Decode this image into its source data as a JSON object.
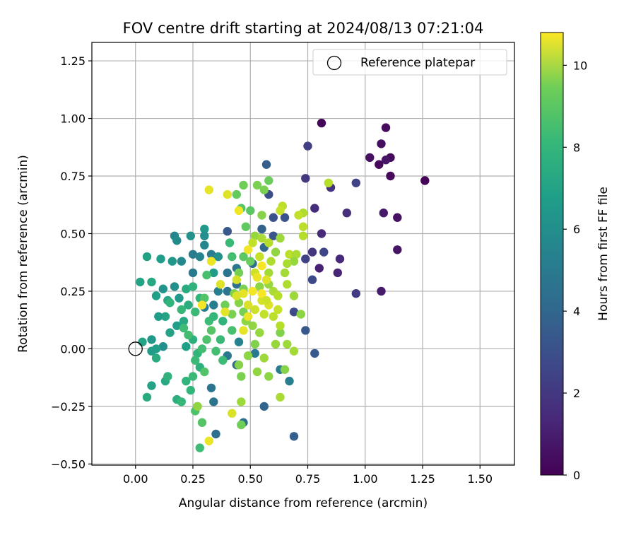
{
  "chart_data": {
    "type": "scatter",
    "title": "FOV centre drift starting at 2024/08/13 07:21:04",
    "xlabel": "Angular distance from reference (arcmin)",
    "ylabel": "Rotation from reference (arcmin)",
    "xlim": [
      -0.19,
      1.65
    ],
    "ylim": [
      -0.505,
      1.33
    ],
    "xticks": [
      0.0,
      0.25,
      0.5,
      0.75,
      1.0,
      1.25,
      1.5
    ],
    "xtick_labels": [
      "0.00",
      "0.25",
      "0.50",
      "0.75",
      "1.00",
      "1.25",
      "1.50"
    ],
    "yticks": [
      -0.5,
      -0.25,
      0.0,
      0.25,
      0.5,
      0.75,
      1.0,
      1.25
    ],
    "ytick_labels": [
      "−0.50",
      "−0.25",
      "0.00",
      "0.25",
      "0.50",
      "0.75",
      "1.00",
      "1.25"
    ],
    "grid": true,
    "legend": {
      "position": "top-right",
      "entries": [
        "Reference platepar"
      ]
    },
    "reference_point": {
      "x": 0.0,
      "y": 0.0,
      "name": "Reference platepar",
      "marker": "open-circle"
    },
    "colorbar": {
      "label": "Hours from first FF file",
      "colormap": "viridis",
      "range": [
        0,
        10.8
      ],
      "ticks": [
        0,
        2,
        4,
        6,
        8,
        10
      ],
      "tick_labels": [
        "0",
        "2",
        "4",
        "6",
        "8",
        "10"
      ]
    },
    "points": [
      [
        0.81,
        0.98,
        0.1
      ],
      [
        1.09,
        0.96,
        0.3
      ],
      [
        1.07,
        0.89,
        0.4
      ],
      [
        1.02,
        0.83,
        0.5
      ],
      [
        1.11,
        0.83,
        0.3
      ],
      [
        1.06,
        0.8,
        0.2
      ],
      [
        1.09,
        0.82,
        0.6
      ],
      [
        1.26,
        0.73,
        0.1
      ],
      [
        1.11,
        0.75,
        0.2
      ],
      [
        1.08,
        0.59,
        0.7
      ],
      [
        1.14,
        0.57,
        0.5
      ],
      [
        1.14,
        0.43,
        0.6
      ],
      [
        1.07,
        0.25,
        0.8
      ],
      [
        0.75,
        0.88,
        2.0
      ],
      [
        0.74,
        0.74,
        1.8
      ],
      [
        0.85,
        0.7,
        1.6
      ],
      [
        0.96,
        0.72,
        2.2
      ],
      [
        0.92,
        0.59,
        1.5
      ],
      [
        0.78,
        0.61,
        1.4
      ],
      [
        0.81,
        0.5,
        1.3
      ],
      [
        0.89,
        0.39,
        1.2
      ],
      [
        0.88,
        0.33,
        1.1
      ],
      [
        0.96,
        0.24,
        1.9
      ],
      [
        0.8,
        0.35,
        1.0
      ],
      [
        0.77,
        0.3,
        2.4
      ],
      [
        0.77,
        0.42,
        1.7
      ],
      [
        0.82,
        0.42,
        2.3
      ],
      [
        0.74,
        0.39,
        2.1
      ],
      [
        0.69,
        0.16,
        2.5
      ],
      [
        0.74,
        0.08,
        3.0
      ],
      [
        0.78,
        -0.02,
        3.1
      ],
      [
        0.69,
        -0.38,
        3.3
      ],
      [
        0.57,
        0.8,
        3.2
      ],
      [
        0.58,
        0.67,
        2.6
      ],
      [
        0.6,
        0.57,
        2.7
      ],
      [
        0.65,
        0.57,
        2.8
      ],
      [
        0.55,
        0.52,
        3.4
      ],
      [
        0.4,
        0.51,
        3.0
      ],
      [
        0.6,
        0.49,
        2.9
      ],
      [
        0.56,
        0.44,
        3.6
      ],
      [
        0.51,
        0.37,
        3.8
      ],
      [
        0.56,
        -0.25,
        3.5
      ],
      [
        0.47,
        -0.32,
        4.0
      ],
      [
        0.35,
        -0.37,
        3.9
      ],
      [
        0.34,
        -0.23,
        4.1
      ],
      [
        0.33,
        -0.17,
        4.2
      ],
      [
        0.44,
        -0.07,
        3.7
      ],
      [
        0.4,
        -0.03,
        4.3
      ],
      [
        0.52,
        -0.02,
        4.4
      ],
      [
        0.63,
        -0.09,
        4.5
      ],
      [
        0.67,
        -0.14,
        4.6
      ],
      [
        0.45,
        0.03,
        4.8
      ],
      [
        0.17,
        0.49,
        5.0
      ],
      [
        0.18,
        0.47,
        5.2
      ],
      [
        0.24,
        0.49,
        5.5
      ],
      [
        0.3,
        0.52,
        5.8
      ],
      [
        0.3,
        0.49,
        5.3
      ],
      [
        0.3,
        0.45,
        5.0
      ],
      [
        0.33,
        0.41,
        4.6
      ],
      [
        0.25,
        0.41,
        4.5
      ],
      [
        0.28,
        0.4,
        4.9
      ],
      [
        0.16,
        0.38,
        5.7
      ],
      [
        0.2,
        0.38,
        5.1
      ],
      [
        0.36,
        0.4,
        5.4
      ],
      [
        0.34,
        0.33,
        5.9
      ],
      [
        0.36,
        0.25,
        4.7
      ],
      [
        0.25,
        0.33,
        4.4
      ],
      [
        0.4,
        0.33,
        4.2
      ],
      [
        0.44,
        0.35,
        4.3
      ],
      [
        0.4,
        0.25,
        4.1
      ],
      [
        0.44,
        0.28,
        4.0
      ],
      [
        0.34,
        0.19,
        4.6
      ],
      [
        0.3,
        0.18,
        4.5
      ],
      [
        0.05,
        0.4,
        6.2
      ],
      [
        0.11,
        0.39,
        6.0
      ],
      [
        0.07,
        0.29,
        6.5
      ],
      [
        0.02,
        0.29,
        6.3
      ],
      [
        0.12,
        0.26,
        5.6
      ],
      [
        0.09,
        0.23,
        6.1
      ],
      [
        0.17,
        0.27,
        5.4
      ],
      [
        0.14,
        0.21,
        6.4
      ],
      [
        0.19,
        0.22,
        5.8
      ],
      [
        0.22,
        0.26,
        6.6
      ],
      [
        0.25,
        0.27,
        6.9
      ],
      [
        0.23,
        0.19,
        6.7
      ],
      [
        0.13,
        0.14,
        6.3
      ],
      [
        0.1,
        0.14,
        5.9
      ],
      [
        0.18,
        0.1,
        6.0
      ],
      [
        0.15,
        0.07,
        6.2
      ],
      [
        0.21,
        0.12,
        6.5
      ],
      [
        0.25,
        0.04,
        6.8
      ],
      [
        0.22,
        0.01,
        6.1
      ],
      [
        0.07,
        0.04,
        5.8
      ],
      [
        0.12,
        0.01,
        5.3
      ],
      [
        0.07,
        -0.01,
        5.9
      ],
      [
        0.09,
        0.0,
        6.0
      ],
      [
        0.09,
        -0.04,
        6.6
      ],
      [
        0.03,
        0.03,
        6.3
      ],
      [
        0.05,
        -0.21,
        6.6
      ],
      [
        0.07,
        -0.16,
        6.2
      ],
      [
        0.13,
        -0.14,
        6.5
      ],
      [
        0.14,
        -0.12,
        6.9
      ],
      [
        0.18,
        -0.22,
        6.7
      ],
      [
        0.2,
        -0.23,
        7.2
      ],
      [
        0.22,
        -0.14,
        7.0
      ],
      [
        0.25,
        -0.12,
        7.3
      ],
      [
        0.24,
        -0.18,
        7.1
      ],
      [
        0.28,
        -0.08,
        6.8
      ],
      [
        0.27,
        -0.02,
        7.0
      ],
      [
        0.28,
        -0.43,
        7.4
      ],
      [
        0.29,
        -0.32,
        7.9
      ],
      [
        0.26,
        -0.27,
        7.7
      ],
      [
        0.27,
        -0.25,
        7.6
      ],
      [
        0.15,
        0.2,
        7.0
      ],
      [
        0.2,
        0.17,
        7.2
      ],
      [
        0.21,
        0.09,
        7.4
      ],
      [
        0.23,
        0.06,
        7.5
      ],
      [
        0.26,
        0.16,
        7.3
      ],
      [
        0.28,
        0.22,
        7.1
      ],
      [
        0.31,
        0.32,
        7.6
      ],
      [
        0.3,
        0.22,
        7.8
      ],
      [
        0.32,
        0.12,
        7.4
      ],
      [
        0.33,
        0.08,
        7.9
      ],
      [
        0.31,
        0.04,
        7.7
      ],
      [
        0.29,
        0.0,
        7.5
      ],
      [
        0.26,
        -0.05,
        7.3
      ],
      [
        0.3,
        -0.1,
        7.8
      ],
      [
        0.34,
        0.14,
        7.2
      ],
      [
        0.38,
        0.12,
        7.0
      ],
      [
        0.37,
        0.04,
        7.3
      ],
      [
        0.42,
        0.08,
        7.6
      ],
      [
        0.38,
        -0.05,
        7.4
      ],
      [
        0.35,
        -0.01,
        7.5
      ],
      [
        0.41,
        0.46,
        7.3
      ],
      [
        0.42,
        0.4,
        7.5
      ],
      [
        0.47,
        0.4,
        8.0
      ],
      [
        0.48,
        0.53,
        8.1
      ],
      [
        0.44,
        0.67,
        8.2
      ],
      [
        0.47,
        0.71,
        8.4
      ],
      [
        0.5,
        0.6,
        8.0
      ],
      [
        0.46,
        0.61,
        7.9
      ],
      [
        0.5,
        0.38,
        8.3
      ],
      [
        0.45,
        0.33,
        8.5
      ],
      [
        0.47,
        0.26,
        8.6
      ],
      [
        0.43,
        0.24,
        8.7
      ],
      [
        0.45,
        0.2,
        8.8
      ],
      [
        0.39,
        0.19,
        8.4
      ],
      [
        0.42,
        0.15,
        8.6
      ],
      [
        0.47,
        0.16,
        8.5
      ],
      [
        0.48,
        0.12,
        8.9
      ],
      [
        0.51,
        0.1,
        9.0
      ],
      [
        0.54,
        0.07,
        9.1
      ],
      [
        0.52,
        0.02,
        8.7
      ],
      [
        0.49,
        -0.03,
        8.9
      ],
      [
        0.45,
        -0.07,
        8.8
      ],
      [
        0.46,
        -0.12,
        8.6
      ],
      [
        0.53,
        -0.1,
        9.0
      ],
      [
        0.56,
        -0.04,
        9.2
      ],
      [
        0.58,
        -0.12,
        8.9
      ],
      [
        0.61,
        0.02,
        9.1
      ],
      [
        0.63,
        0.07,
        8.7
      ],
      [
        0.66,
        0.02,
        9.2
      ],
      [
        0.69,
        -0.01,
        9.3
      ],
      [
        0.65,
        -0.09,
        8.8
      ],
      [
        0.63,
        -0.21,
        9.4
      ],
      [
        0.46,
        -0.23,
        9.2
      ],
      [
        0.46,
        -0.33,
        8.4
      ],
      [
        0.27,
        -0.25,
        9.0
      ],
      [
        0.54,
        0.27,
        8.9
      ],
      [
        0.58,
        0.28,
        9.1
      ],
      [
        0.6,
        0.25,
        9.4
      ],
      [
        0.62,
        0.23,
        9.6
      ],
      [
        0.58,
        0.33,
        9.3
      ],
      [
        0.59,
        0.38,
        9.5
      ],
      [
        0.61,
        0.42,
        9.0
      ],
      [
        0.63,
        0.48,
        9.2
      ],
      [
        0.67,
        0.41,
        9.7
      ],
      [
        0.7,
        0.41,
        9.4
      ],
      [
        0.73,
        0.49,
        9.6
      ],
      [
        0.73,
        0.59,
        9.5
      ],
      [
        0.71,
        0.58,
        9.8
      ],
      [
        0.64,
        0.62,
        9.7
      ],
      [
        0.63,
        0.6,
        9.9
      ],
      [
        0.55,
        0.58,
        8.8
      ],
      [
        0.52,
        0.49,
        9.1
      ],
      [
        0.55,
        0.48,
        9.4
      ],
      [
        0.58,
        0.46,
        9.6
      ],
      [
        0.51,
        0.46,
        9.8
      ],
      [
        0.54,
        0.4,
        9.9
      ],
      [
        0.52,
        0.33,
        10.0
      ],
      [
        0.55,
        0.21,
        10.1
      ],
      [
        0.52,
        0.17,
        10.0
      ],
      [
        0.49,
        0.19,
        10.2
      ],
      [
        0.56,
        0.15,
        9.8
      ],
      [
        0.6,
        0.14,
        9.7
      ],
      [
        0.63,
        0.1,
        9.6
      ],
      [
        0.62,
        0.17,
        9.9
      ],
      [
        0.66,
        0.28,
        9.5
      ],
      [
        0.65,
        0.33,
        9.3
      ],
      [
        0.69,
        0.38,
        9.1
      ],
      [
        0.73,
        0.53,
        9.7
      ],
      [
        0.66,
        0.37,
        9.4
      ],
      [
        0.69,
        0.23,
        9.2
      ],
      [
        0.72,
        0.15,
        8.9
      ],
      [
        0.56,
        0.69,
        8.6
      ],
      [
        0.58,
        0.73,
        8.3
      ],
      [
        0.84,
        0.72,
        9.6
      ],
      [
        0.53,
        0.71,
        8.6
      ],
      [
        0.32,
        0.69,
        10.4
      ],
      [
        0.4,
        0.67,
        10.3
      ],
      [
        0.45,
        0.6,
        10.6
      ],
      [
        0.33,
        0.38,
        10.5
      ],
      [
        0.37,
        0.28,
        10.3
      ],
      [
        0.29,
        0.19,
        10.7
      ],
      [
        0.39,
        0.16,
        10.4
      ],
      [
        0.42,
        -0.28,
        10.2
      ],
      [
        0.32,
        -0.4,
        10.5
      ],
      [
        0.49,
        0.43,
        10.6
      ],
      [
        0.55,
        0.36,
        10.7
      ],
      [
        0.53,
        0.31,
        10.5
      ],
      [
        0.47,
        0.24,
        10.4
      ],
      [
        0.51,
        0.25,
        10.6
      ],
      [
        0.55,
        0.24,
        10.7
      ],
      [
        0.58,
        0.19,
        10.3
      ],
      [
        0.49,
        0.14,
        10.5
      ],
      [
        0.44,
        0.23,
        10.2
      ],
      [
        0.47,
        0.08,
        10.4
      ],
      [
        0.44,
        0.3,
        10.1
      ],
      [
        0.57,
        0.21,
        10.0
      ],
      [
        0.57,
        0.3,
        10.3
      ]
    ]
  }
}
